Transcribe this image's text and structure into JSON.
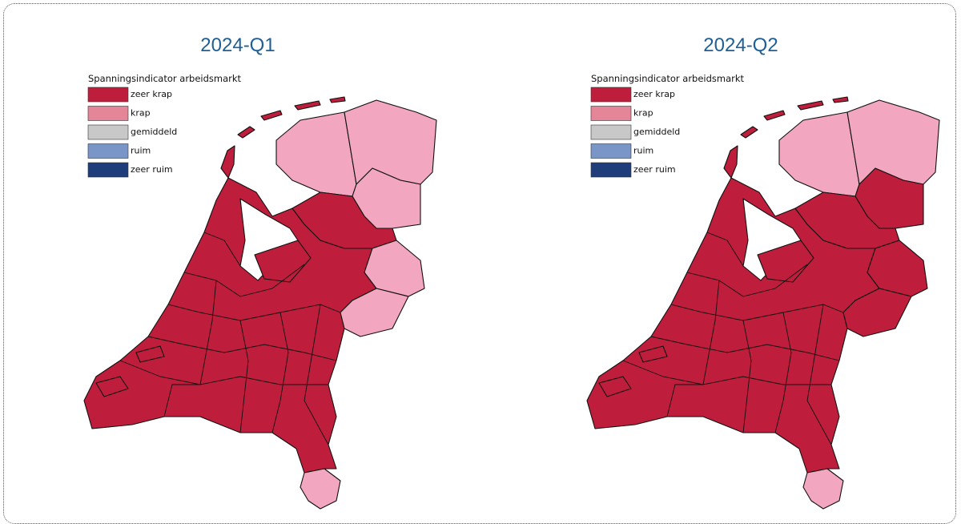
{
  "maps": [
    {
      "title": "2024-Q1",
      "legend": {
        "title": "Spanningsindicator arbeidsmarkt",
        "items": [
          {
            "label": "zeer krap",
            "color": "#be1e3c"
          },
          {
            "label": "krap",
            "color": "#e48598"
          },
          {
            "label": "gemiddeld",
            "color": "#c8c8c8"
          },
          {
            "label": "ruim",
            "color": "#7a96c6"
          },
          {
            "label": "zeer ruim",
            "color": "#1f3d7a"
          }
        ]
      },
      "pink": "#f2a6c0"
    },
    {
      "title": "2024-Q2",
      "legend": {
        "title": "Spanningsindicator arbeidsmarkt",
        "items": [
          {
            "label": "zeer krap",
            "color": "#be1e3c"
          },
          {
            "label": "krap",
            "color": "#e48598"
          },
          {
            "label": "gemiddeld",
            "color": "#c8c8c8"
          },
          {
            "label": "ruim",
            "color": "#7a96c6"
          },
          {
            "label": "zeer ruim",
            "color": "#1f3d7a"
          }
        ]
      },
      "pink": "#f2a6c0"
    }
  ]
}
